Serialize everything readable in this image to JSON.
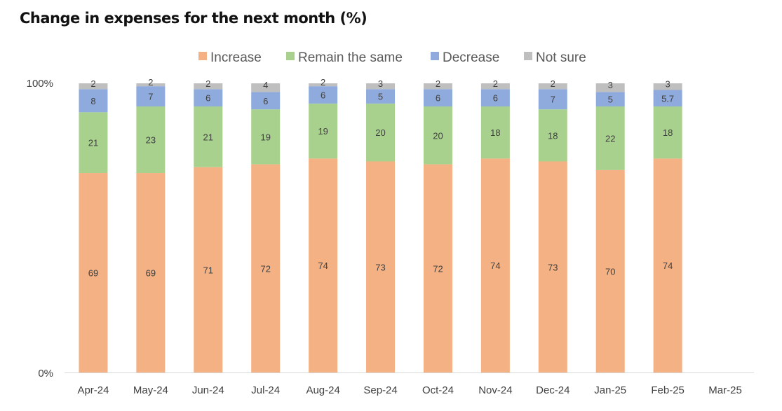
{
  "page": {
    "title": "Change in expenses for the next month (%)"
  },
  "chart_data": {
    "type": "bar",
    "stacked": true,
    "percent_stacked": true,
    "title": "Change in expenses for the next month (%)",
    "xlabel": "",
    "ylabel": "",
    "ylim": [
      0,
      100
    ],
    "y_ticks": [
      "0%",
      "100%"
    ],
    "grid": false,
    "legend_position": "top",
    "categories": [
      "Apr-24",
      "May-24",
      "Jun-24",
      "Jul-24",
      "Aug-24",
      "Sep-24",
      "Oct-24",
      "Nov-24",
      "Dec-24",
      "Jan-25",
      "Feb-25",
      "Mar-25"
    ],
    "series": [
      {
        "name": "Increase",
        "color": "#F4B183",
        "values": [
          69,
          69,
          71,
          72,
          74,
          73,
          72,
          74,
          73,
          70,
          74,
          null
        ]
      },
      {
        "name": "Remain the same",
        "color": "#A9D18E",
        "values": [
          21,
          23,
          21,
          19,
          19,
          20,
          20,
          18,
          18,
          22,
          18,
          null
        ]
      },
      {
        "name": "Decrease",
        "color": "#8FAADC",
        "values": [
          8,
          7,
          6,
          6,
          6,
          5,
          6,
          6,
          7,
          5,
          5.7,
          null
        ]
      },
      {
        "name": "Not sure",
        "color": "#BFBFBF",
        "values": [
          2,
          2,
          2,
          4,
          2,
          3,
          2,
          2,
          2,
          3,
          3,
          null
        ]
      }
    ]
  }
}
